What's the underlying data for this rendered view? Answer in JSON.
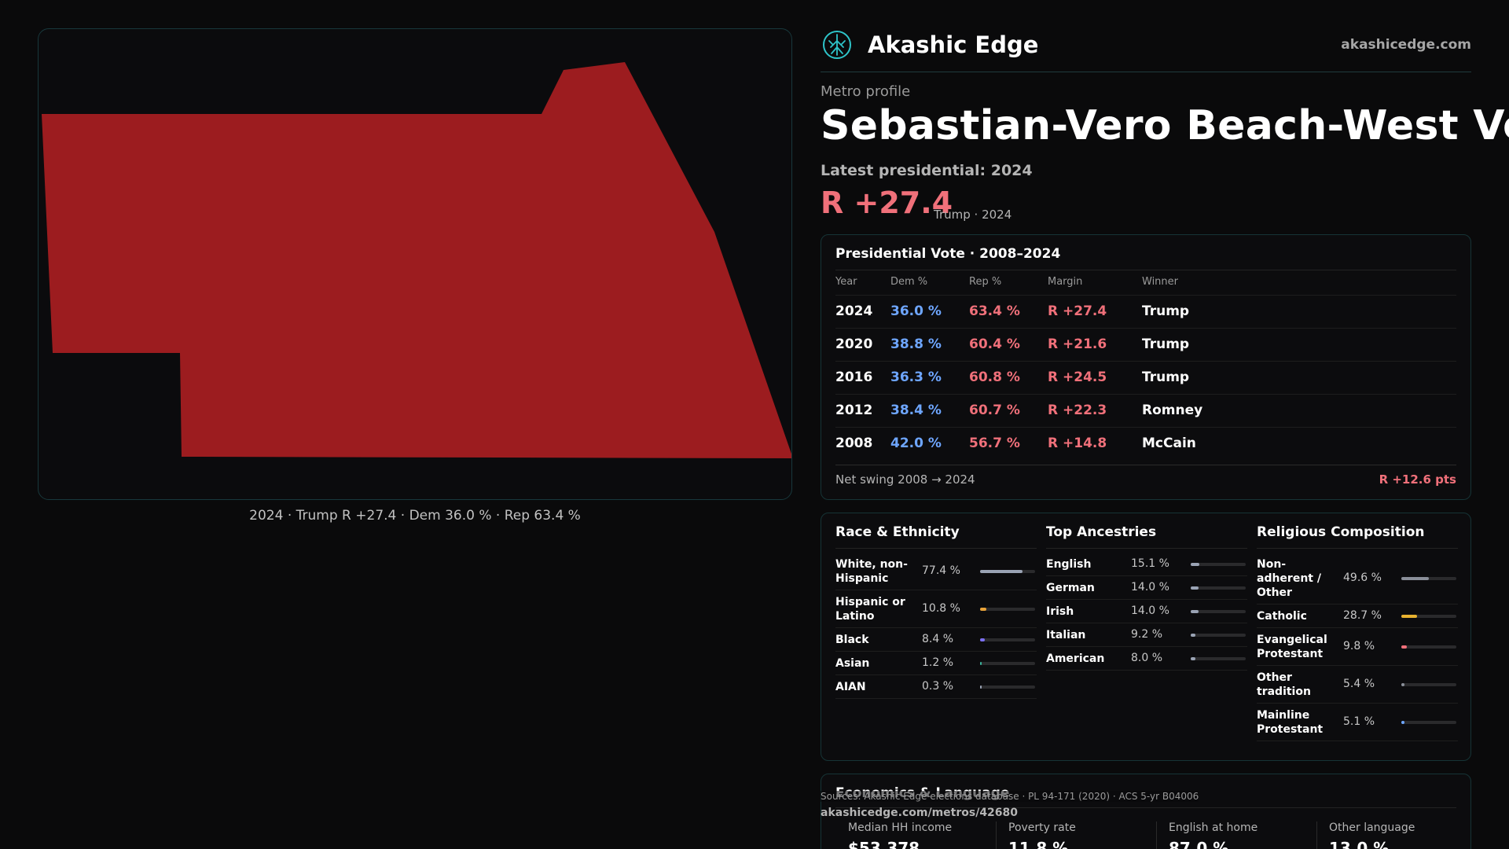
{
  "brand": {
    "name": "Akashic Edge",
    "url": "akashicedge.com",
    "logo_icon": "akashic-tree-logo-icon"
  },
  "header": {
    "kicker": "Metro profile",
    "title": "Sebastian-Vero Beach-West Vero Corridor",
    "latest_label": "Latest presidential: 2024",
    "margin": "R +27.4",
    "margin_sub": "Trump · 2024"
  },
  "map": {
    "caption": "2024 · Trump R +27.4 · Dem 36.0 % · Rep 63.4 %",
    "fill_color": "#9c1c1f",
    "border_color": "#18383c"
  },
  "vote_table": {
    "title": "Presidential Vote · 2008–2024",
    "headers": [
      "Year",
      "Dem %",
      "Rep %",
      "Margin",
      "Winner"
    ],
    "rows": [
      {
        "year": "2024",
        "dem": "36.0 %",
        "rep": "63.4 %",
        "margin": "R +27.4",
        "winner": "Trump"
      },
      {
        "year": "2020",
        "dem": "38.8 %",
        "rep": "60.4 %",
        "margin": "R +21.6",
        "winner": "Trump"
      },
      {
        "year": "2016",
        "dem": "36.3 %",
        "rep": "60.8 %",
        "margin": "R +24.5",
        "winner": "Trump"
      },
      {
        "year": "2012",
        "dem": "38.4 %",
        "rep": "60.7 %",
        "margin": "R +22.3",
        "winner": "Romney"
      },
      {
        "year": "2008",
        "dem": "42.0 %",
        "rep": "56.7 %",
        "margin": "R +14.8",
        "winner": "McCain"
      }
    ],
    "swing_label": "Net swing 2008 → 2024",
    "swing_value": "R +12.6 pts"
  },
  "demographics": [
    {
      "key": "race",
      "title": "Race & Ethnicity",
      "items": [
        {
          "label": "White, non-Hispanic",
          "value": "77.4 %",
          "pct": 77.4,
          "color": "#9aa3b4",
          "lines": 2
        },
        {
          "label": "Hispanic or Latino",
          "value": "10.8 %",
          "pct": 10.8,
          "color": "#e8a33a",
          "lines": 2
        },
        {
          "label": "Black",
          "value": "8.4 %",
          "pct": 8.4,
          "color": "#7b6ff0",
          "lines": 1
        },
        {
          "label": "Asian",
          "value": "1.2 %",
          "pct": 1.2,
          "color": "#3ab39b",
          "lines": 1
        },
        {
          "label": "AIAN",
          "value": "0.3 %",
          "pct": 0.3,
          "color": "#9aa3b4",
          "lines": 1
        }
      ]
    },
    {
      "key": "ancestry",
      "title": "Top Ancestries",
      "items": [
        {
          "label": "English",
          "value": "15.1 %",
          "pct": 15.1,
          "color": "#9aa3b4",
          "lines": 1
        },
        {
          "label": "German",
          "value": "14.0 %",
          "pct": 14.0,
          "color": "#9aa3b4",
          "lines": 1
        },
        {
          "label": "Irish",
          "value": "14.0 %",
          "pct": 14.0,
          "color": "#9aa3b4",
          "lines": 1
        },
        {
          "label": "Italian",
          "value": "9.2 %",
          "pct": 9.2,
          "color": "#9aa3b4",
          "lines": 1
        },
        {
          "label": "American",
          "value": "8.0 %",
          "pct": 8.0,
          "color": "#9aa3b4",
          "lines": 1
        }
      ]
    },
    {
      "key": "religion",
      "title": "Religious Composition",
      "items": [
        {
          "label": "Non-adherent / Other",
          "value": "49.6 %",
          "pct": 49.6,
          "color": "#8a8f99",
          "lines": 3
        },
        {
          "label": "Catholic",
          "value": "28.7 %",
          "pct": 28.7,
          "color": "#e8b230",
          "lines": 1
        },
        {
          "label": "Evangelical Protestant",
          "value": "9.8 %",
          "pct": 9.8,
          "color": "#f0707a",
          "lines": 2
        },
        {
          "label": "Other tradition",
          "value": "5.4 %",
          "pct": 5.4,
          "color": "#8a8f99",
          "lines": 2
        },
        {
          "label": "Mainline Protestant",
          "value": "5.1 %",
          "pct": 5.1,
          "color": "#6ea6ff",
          "lines": 2
        }
      ]
    }
  ],
  "economics": {
    "title": "Economics & Language",
    "cells": [
      {
        "label": "Median HH income",
        "value": "$53,378"
      },
      {
        "label": "Poverty rate",
        "value": "11.8 %"
      },
      {
        "label": "English at home",
        "value": "87.0 %"
      },
      {
        "label": "Other language",
        "value": "13.0 %"
      }
    ]
  },
  "footer": {
    "sources": "Sources: Akashic Edge elections database · PL 94-171 (2020) · ACS 5-yr B04006",
    "permalink": "akashicedge.com/metros/42680"
  }
}
